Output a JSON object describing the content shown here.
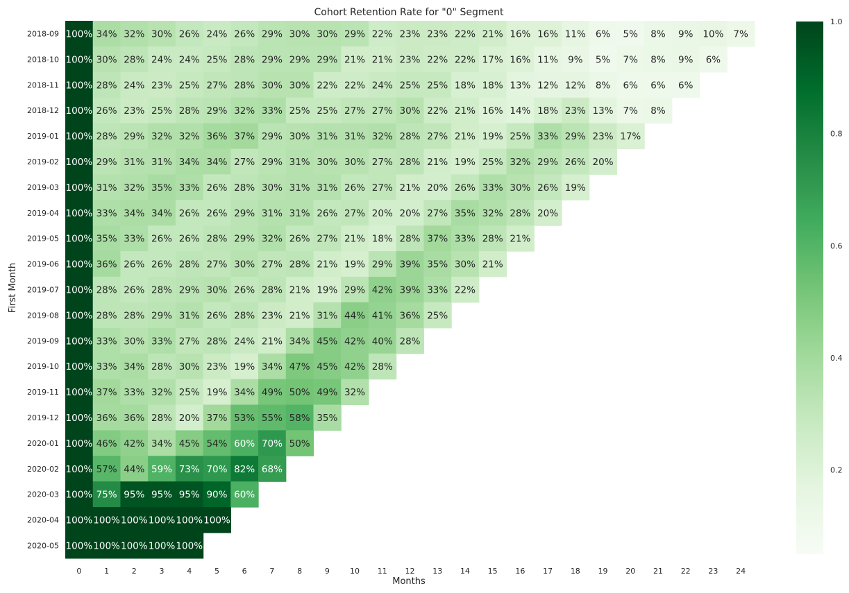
{
  "chart_data": {
    "type": "heatmap",
    "title": "Cohort Retention Rate for \"0\" Segment",
    "xlabel": "Months",
    "ylabel": "First Month",
    "x": [
      "0",
      "1",
      "2",
      "3",
      "4",
      "5",
      "6",
      "7",
      "8",
      "9",
      "10",
      "11",
      "12",
      "13",
      "14",
      "15",
      "16",
      "17",
      "18",
      "19",
      "20",
      "21",
      "22",
      "23",
      "24"
    ],
    "y": [
      "2018-09",
      "2018-10",
      "2018-11",
      "2018-12",
      "2019-01",
      "2019-02",
      "2019-03",
      "2019-04",
      "2019-05",
      "2019-06",
      "2019-07",
      "2019-08",
      "2019-09",
      "2019-10",
      "2019-11",
      "2019-12",
      "2020-01",
      "2020-02",
      "2020-03",
      "2020-04",
      "2020-05"
    ],
    "values": [
      [
        100,
        34,
        32,
        30,
        26,
        24,
        26,
        29,
        30,
        30,
        29,
        22,
        23,
        23,
        22,
        21,
        16,
        16,
        11,
        6,
        5,
        8,
        9,
        10,
        7
      ],
      [
        100,
        30,
        28,
        24,
        24,
        25,
        28,
        29,
        29,
        29,
        21,
        21,
        23,
        22,
        22,
        17,
        16,
        11,
        9,
        5,
        7,
        8,
        9,
        6
      ],
      [
        100,
        28,
        24,
        23,
        25,
        27,
        28,
        30,
        30,
        22,
        22,
        24,
        25,
        25,
        18,
        18,
        13,
        12,
        12,
        8,
        6,
        6,
        6
      ],
      [
        100,
        26,
        23,
        25,
        28,
        29,
        32,
        33,
        25,
        25,
        27,
        27,
        30,
        22,
        21,
        16,
        14,
        18,
        23,
        13,
        7,
        8
      ],
      [
        100,
        28,
        29,
        32,
        32,
        36,
        37,
        29,
        30,
        31,
        31,
        32,
        28,
        27,
        21,
        19,
        25,
        33,
        29,
        23,
        17
      ],
      [
        100,
        29,
        31,
        31,
        34,
        34,
        27,
        29,
        31,
        30,
        30,
        27,
        28,
        21,
        19,
        25,
        32,
        29,
        26,
        20
      ],
      [
        100,
        31,
        32,
        35,
        33,
        26,
        28,
        30,
        31,
        31,
        26,
        27,
        21,
        20,
        26,
        33,
        30,
        26,
        19
      ],
      [
        100,
        33,
        34,
        34,
        26,
        26,
        29,
        31,
        31,
        26,
        27,
        20,
        20,
        27,
        35,
        32,
        28,
        20
      ],
      [
        100,
        35,
        33,
        26,
        26,
        28,
        29,
        32,
        26,
        27,
        21,
        18,
        28,
        37,
        33,
        28,
        21
      ],
      [
        100,
        36,
        26,
        26,
        28,
        27,
        30,
        27,
        28,
        21,
        19,
        29,
        39,
        35,
        30,
        21
      ],
      [
        100,
        28,
        26,
        28,
        29,
        30,
        26,
        28,
        21,
        19,
        29,
        42,
        39,
        33,
        22
      ],
      [
        100,
        28,
        28,
        29,
        31,
        26,
        28,
        23,
        21,
        31,
        44,
        41,
        36,
        25
      ],
      [
        100,
        33,
        30,
        33,
        27,
        28,
        24,
        21,
        34,
        45,
        42,
        40,
        28
      ],
      [
        100,
        33,
        34,
        28,
        30,
        23,
        19,
        34,
        47,
        45,
        42,
        28
      ],
      [
        100,
        37,
        33,
        32,
        25,
        19,
        34,
        49,
        50,
        49,
        32
      ],
      [
        100,
        36,
        36,
        28,
        20,
        37,
        53,
        55,
        58,
        35
      ],
      [
        100,
        46,
        42,
        34,
        45,
        54,
        60,
        70,
        50
      ],
      [
        100,
        57,
        44,
        59,
        73,
        70,
        82,
        68
      ],
      [
        100,
        75,
        95,
        95,
        95,
        90,
        60
      ],
      [
        100,
        100,
        100,
        100,
        100,
        100
      ],
      [
        100,
        100,
        100,
        100,
        100
      ]
    ],
    "value_format": "percent",
    "colormap": "Greens",
    "colormap_stops": [
      "#f7fcf5",
      "#e5f5e0",
      "#c7e9c0",
      "#a1d99b",
      "#74c476",
      "#41ab5d",
      "#238b45",
      "#006d2c",
      "#00441b"
    ],
    "colorbar": {
      "vmin": 0,
      "vmax": 1,
      "ticks": [
        "0.2",
        "0.4",
        "0.6",
        "0.8",
        "1.0"
      ]
    },
    "grid": false,
    "legend": "colorbar-right"
  }
}
